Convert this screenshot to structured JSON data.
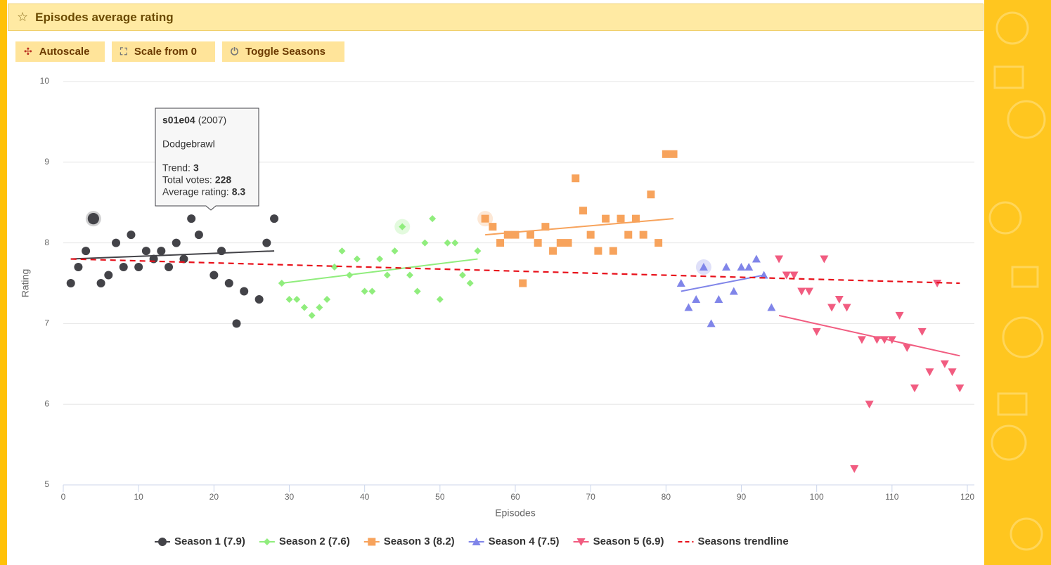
{
  "header": {
    "title": "Episodes average rating"
  },
  "buttons": [
    "Autoscale",
    "Scale from 0",
    "Toggle Seasons"
  ],
  "tooltip": {
    "episode": "s01e04",
    "year": "(2007)",
    "name": "Dodgebrawl",
    "trend_label": "Trend:",
    "trend": 3,
    "votes_label": "Total votes:",
    "votes": 228,
    "rating_label": "Average rating:"
  },
  "chart_data": {
    "type": "scatter",
    "xlabel": "Episodes",
    "ylabel": "Rating",
    "xlim": [
      0,
      120
    ],
    "xticks": [
      0,
      10,
      20,
      30,
      40,
      50,
      60,
      70,
      80,
      90,
      100,
      110,
      120
    ],
    "ylim": [
      5,
      10
    ],
    "yticks": [
      5,
      6,
      7,
      8,
      9,
      10
    ],
    "grid": true,
    "series": [
      {
        "name": "Season 1 (7.9)",
        "color": "#434348",
        "marker": "circle",
        "hovered": 3,
        "x": [
          1,
          2,
          3,
          4,
          5,
          6,
          7,
          8,
          9,
          10,
          11,
          12,
          13,
          14,
          15,
          16,
          17,
          18,
          20,
          21,
          22,
          23,
          24,
          26,
          27,
          28
        ],
        "values": [
          7.5,
          7.7,
          7.9,
          8.3,
          7.5,
          7.6,
          8.0,
          7.7,
          8.1,
          7.7,
          7.9,
          7.8,
          7.9,
          7.7,
          8.0,
          7.8,
          8.3,
          8.1,
          7.6,
          7.9,
          7.5,
          7.0,
          7.4,
          7.3,
          8.0,
          8.3
        ],
        "trend": {
          "x": [
            1,
            28
          ],
          "values": [
            7.8,
            7.9
          ]
        }
      },
      {
        "name": "Season 2 (7.6)",
        "color": "#90ed7d",
        "marker": "diamond",
        "hovered": 16,
        "x": [
          29,
          30,
          31,
          32,
          33,
          34,
          35,
          36,
          37,
          38,
          39,
          40,
          41,
          42,
          43,
          44,
          45,
          46,
          47,
          48,
          49,
          50,
          51,
          52,
          53,
          54,
          55
        ],
        "values": [
          7.5,
          7.3,
          7.3,
          7.2,
          7.1,
          7.2,
          7.3,
          7.7,
          7.9,
          7.6,
          7.8,
          7.4,
          7.4,
          7.8,
          7.6,
          7.9,
          8.2,
          7.6,
          7.4,
          8.0,
          8.3,
          7.3,
          8.0,
          8.0,
          7.6,
          7.5,
          7.9
        ],
        "trend": {
          "x": [
            29,
            55
          ],
          "values": [
            7.5,
            7.8
          ]
        }
      },
      {
        "name": "Season 3 (8.2)",
        "color": "#f7a35c",
        "marker": "square",
        "hovered": 0,
        "x": [
          56,
          57,
          58,
          59,
          60,
          61,
          62,
          63,
          64,
          65,
          66,
          67,
          68,
          69,
          70,
          71,
          72,
          73,
          74,
          75,
          76,
          77,
          78,
          79,
          80,
          81
        ],
        "values": [
          8.3,
          8.2,
          8.0,
          8.1,
          8.1,
          7.5,
          8.1,
          8.0,
          8.2,
          7.9,
          8.0,
          8.0,
          8.8,
          8.4,
          8.1,
          7.9,
          8.3,
          7.9,
          8.3,
          8.1,
          8.3,
          8.1,
          8.6,
          8.0,
          9.1,
          9.1
        ],
        "trend": {
          "x": [
            56,
            81
          ],
          "values": [
            8.1,
            8.3
          ]
        }
      },
      {
        "name": "Season 4 (7.5)",
        "color": "#8085e9",
        "marker": "triangle",
        "hovered": 3,
        "x": [
          82,
          83,
          84,
          85,
          86,
          87,
          88,
          89,
          90,
          91,
          92,
          93,
          94
        ],
        "values": [
          7.5,
          7.2,
          7.3,
          7.7,
          7.0,
          7.3,
          7.7,
          7.4,
          7.7,
          7.7,
          7.8,
          7.6,
          7.2
        ],
        "trend": {
          "x": [
            82,
            93
          ],
          "values": [
            7.4,
            7.6
          ]
        }
      },
      {
        "name": "Season 5 (6.9)",
        "color": "#f15c80",
        "marker": "triangle-down",
        "x": [
          95,
          96,
          97,
          98,
          99,
          100,
          101,
          102,
          103,
          104,
          105,
          106,
          107,
          108,
          109,
          110,
          111,
          112,
          113,
          114,
          115,
          116,
          117,
          118,
          119
        ],
        "values": [
          7.8,
          7.6,
          7.6,
          7.4,
          7.4,
          6.9,
          7.8,
          7.2,
          7.3,
          7.2,
          5.2,
          6.8,
          6.0,
          6.8,
          6.8,
          6.8,
          7.1,
          6.7,
          6.2,
          6.9,
          6.4,
          7.5,
          6.5,
          6.4,
          6.2
        ],
        "trend": {
          "x": [
            95,
            119
          ],
          "values": [
            7.1,
            6.6
          ]
        }
      },
      {
        "name": "Seasons trendline",
        "color": "#e8101a",
        "marker": "dashed-line",
        "x": [
          1,
          119
        ],
        "values": [
          7.8,
          7.5
        ]
      }
    ]
  }
}
